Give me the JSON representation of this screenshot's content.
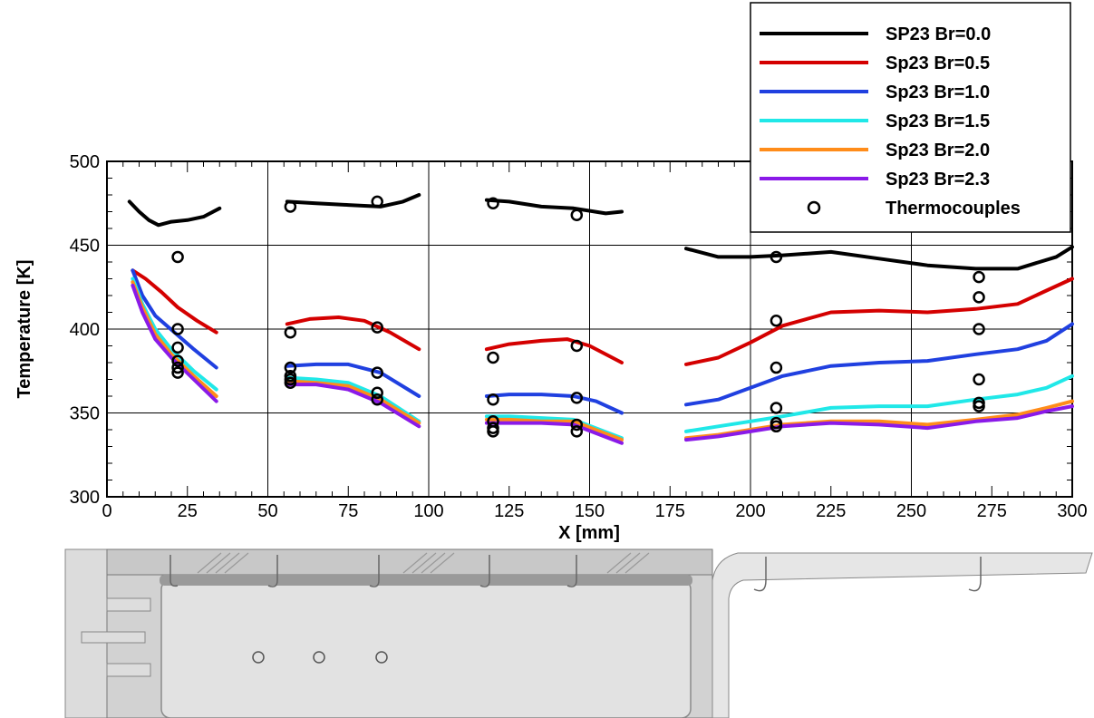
{
  "chart_data": {
    "type": "line",
    "xlabel": "X [mm]",
    "ylabel": "Temperature [K]",
    "xlim": [
      0,
      300
    ],
    "ylim": [
      300,
      500
    ],
    "xticks": [
      "0",
      "25",
      "50",
      "75",
      "100",
      "125",
      "150",
      "175",
      "200",
      "225",
      "250",
      "275",
      "300"
    ],
    "yticks": [
      "300",
      "350",
      "400",
      "450",
      "500"
    ],
    "grid": true,
    "legend_position": "top-right",
    "series": [
      {
        "name": "SP23 Br=0.0",
        "color": "#000000",
        "segments": [
          [
            [
              7,
              476
            ],
            [
              10,
              470
            ],
            [
              13,
              465
            ],
            [
              16,
              462
            ],
            [
              20,
              464
            ],
            [
              25,
              465
            ],
            [
              30,
              467
            ],
            [
              35,
              472
            ]
          ],
          [
            [
              56,
              476
            ],
            [
              65,
              475
            ],
            [
              75,
              474
            ],
            [
              85,
              473
            ],
            [
              92,
              476
            ],
            [
              97,
              480
            ]
          ],
          [
            [
              118,
              477
            ],
            [
              125,
              476
            ],
            [
              135,
              473
            ],
            [
              145,
              472
            ],
            [
              155,
              469
            ],
            [
              160,
              470
            ]
          ],
          [
            [
              180,
              448
            ],
            [
              190,
              443
            ],
            [
              200,
              443
            ],
            [
              210,
              444
            ],
            [
              225,
              446
            ],
            [
              240,
              442
            ],
            [
              255,
              438
            ],
            [
              270,
              436
            ],
            [
              283,
              436
            ],
            [
              295,
              443
            ],
            [
              300,
              449
            ]
          ]
        ]
      },
      {
        "name": "Sp23 Br=0.5",
        "color": "#d40000",
        "segments": [
          [
            [
              8,
              435
            ],
            [
              12,
              430
            ],
            [
              17,
              422
            ],
            [
              22,
              413
            ],
            [
              28,
              405
            ],
            [
              34,
              398
            ]
          ],
          [
            [
              56,
              403
            ],
            [
              63,
              406
            ],
            [
              72,
              407
            ],
            [
              80,
              405
            ],
            [
              88,
              398
            ],
            [
              97,
              388
            ]
          ],
          [
            [
              118,
              388
            ],
            [
              125,
              391
            ],
            [
              135,
              393
            ],
            [
              143,
              394
            ],
            [
              150,
              390
            ],
            [
              160,
              380
            ]
          ],
          [
            [
              180,
              379
            ],
            [
              190,
              383
            ],
            [
              200,
              392
            ],
            [
              210,
              402
            ],
            [
              225,
              410
            ],
            [
              240,
              411
            ],
            [
              255,
              410
            ],
            [
              270,
              412
            ],
            [
              283,
              415
            ],
            [
              292,
              423
            ],
            [
              300,
              430
            ]
          ]
        ]
      },
      {
        "name": "Sp23 Br=1.0",
        "color": "#2040e0",
        "segments": [
          [
            [
              8,
              435
            ],
            [
              11,
              420
            ],
            [
              15,
              408
            ],
            [
              21,
              398
            ],
            [
              27,
              388
            ],
            [
              34,
              377
            ]
          ],
          [
            [
              56,
              378
            ],
            [
              65,
              379
            ],
            [
              75,
              379
            ],
            [
              85,
              374
            ],
            [
              97,
              360
            ]
          ],
          [
            [
              118,
              360
            ],
            [
              125,
              361
            ],
            [
              135,
              361
            ],
            [
              145,
              360
            ],
            [
              152,
              357
            ],
            [
              160,
              350
            ]
          ],
          [
            [
              180,
              355
            ],
            [
              190,
              358
            ],
            [
              200,
              365
            ],
            [
              210,
              372
            ],
            [
              225,
              378
            ],
            [
              240,
              380
            ],
            [
              255,
              381
            ],
            [
              270,
              385
            ],
            [
              283,
              388
            ],
            [
              292,
              393
            ],
            [
              300,
              403
            ]
          ]
        ]
      },
      {
        "name": "Sp23 Br=1.5",
        "color": "#20e8e8",
        "segments": [
          [
            [
              8,
              430
            ],
            [
              11,
              415
            ],
            [
              15,
              400
            ],
            [
              20,
              388
            ],
            [
              27,
              375
            ],
            [
              34,
              364
            ]
          ],
          [
            [
              56,
              371
            ],
            [
              65,
              370
            ],
            [
              75,
              368
            ],
            [
              85,
              360
            ],
            [
              97,
              345
            ]
          ],
          [
            [
              118,
              348
            ],
            [
              125,
              348
            ],
            [
              135,
              347
            ],
            [
              145,
              346
            ],
            [
              160,
              335
            ]
          ],
          [
            [
              180,
              339
            ],
            [
              190,
              342
            ],
            [
              200,
              345
            ],
            [
              210,
              348
            ],
            [
              225,
              353
            ],
            [
              240,
              354
            ],
            [
              255,
              354
            ],
            [
              270,
              358
            ],
            [
              283,
              361
            ],
            [
              292,
              365
            ],
            [
              300,
              372
            ]
          ]
        ]
      },
      {
        "name": "Sp23 Br=2.0",
        "color": "#ff8c1a",
        "segments": [
          [
            [
              8,
              428
            ],
            [
              11,
              413
            ],
            [
              15,
              397
            ],
            [
              20,
              385
            ],
            [
              27,
              372
            ],
            [
              34,
              360
            ]
          ],
          [
            [
              56,
              369
            ],
            [
              65,
              368
            ],
            [
              75,
              366
            ],
            [
              85,
              358
            ],
            [
              97,
              344
            ]
          ],
          [
            [
              118,
              346
            ],
            [
              125,
              346
            ],
            [
              135,
              345
            ],
            [
              145,
              345
            ],
            [
              160,
              334
            ]
          ],
          [
            [
              180,
              335
            ],
            [
              190,
              337
            ],
            [
              200,
              340
            ],
            [
              210,
              343
            ],
            [
              225,
              345
            ],
            [
              240,
              345
            ],
            [
              255,
              343
            ],
            [
              270,
              346
            ],
            [
              283,
              349
            ],
            [
              292,
              353
            ],
            [
              300,
              357
            ]
          ]
        ]
      },
      {
        "name": "Sp23 Br=2.3",
        "color": "#8a1ae8",
        "segments": [
          [
            [
              8,
              426
            ],
            [
              11,
              410
            ],
            [
              15,
              394
            ],
            [
              20,
              383
            ],
            [
              27,
              370
            ],
            [
              34,
              357
            ]
          ],
          [
            [
              56,
              367
            ],
            [
              65,
              367
            ],
            [
              75,
              364
            ],
            [
              85,
              356
            ],
            [
              97,
              342
            ]
          ],
          [
            [
              118,
              344
            ],
            [
              125,
              344
            ],
            [
              135,
              344
            ],
            [
              145,
              343
            ],
            [
              160,
              332
            ]
          ],
          [
            [
              180,
              334
            ],
            [
              190,
              336
            ],
            [
              200,
              339
            ],
            [
              210,
              342
            ],
            [
              225,
              344
            ],
            [
              240,
              343
            ],
            [
              255,
              341
            ],
            [
              270,
              345
            ],
            [
              283,
              347
            ],
            [
              292,
              351
            ],
            [
              300,
              354
            ]
          ]
        ]
      }
    ],
    "thermocouples": {
      "name": "Thermocouples",
      "points": [
        [
          22,
          443
        ],
        [
          22,
          400
        ],
        [
          22,
          389
        ],
        [
          22,
          381
        ],
        [
          22,
          377
        ],
        [
          22,
          374
        ],
        [
          57,
          473
        ],
        [
          57,
          398
        ],
        [
          57,
          377
        ],
        [
          57,
          372
        ],
        [
          57,
          370
        ],
        [
          57,
          368
        ],
        [
          84,
          476
        ],
        [
          84,
          401
        ],
        [
          84,
          374
        ],
        [
          84,
          362
        ],
        [
          84,
          358
        ],
        [
          120,
          475
        ],
        [
          120,
          383
        ],
        [
          120,
          358
        ],
        [
          120,
          345
        ],
        [
          120,
          341
        ],
        [
          120,
          339
        ],
        [
          146,
          468
        ],
        [
          146,
          390
        ],
        [
          146,
          359
        ],
        [
          146,
          343
        ],
        [
          146,
          339
        ],
        [
          208,
          443
        ],
        [
          208,
          405
        ],
        [
          208,
          377
        ],
        [
          208,
          353
        ],
        [
          208,
          344
        ],
        [
          208,
          342
        ],
        [
          271,
          431
        ],
        [
          271,
          419
        ],
        [
          271,
          400
        ],
        [
          271,
          370
        ],
        [
          271,
          356
        ],
        [
          271,
          354
        ]
      ]
    }
  }
}
